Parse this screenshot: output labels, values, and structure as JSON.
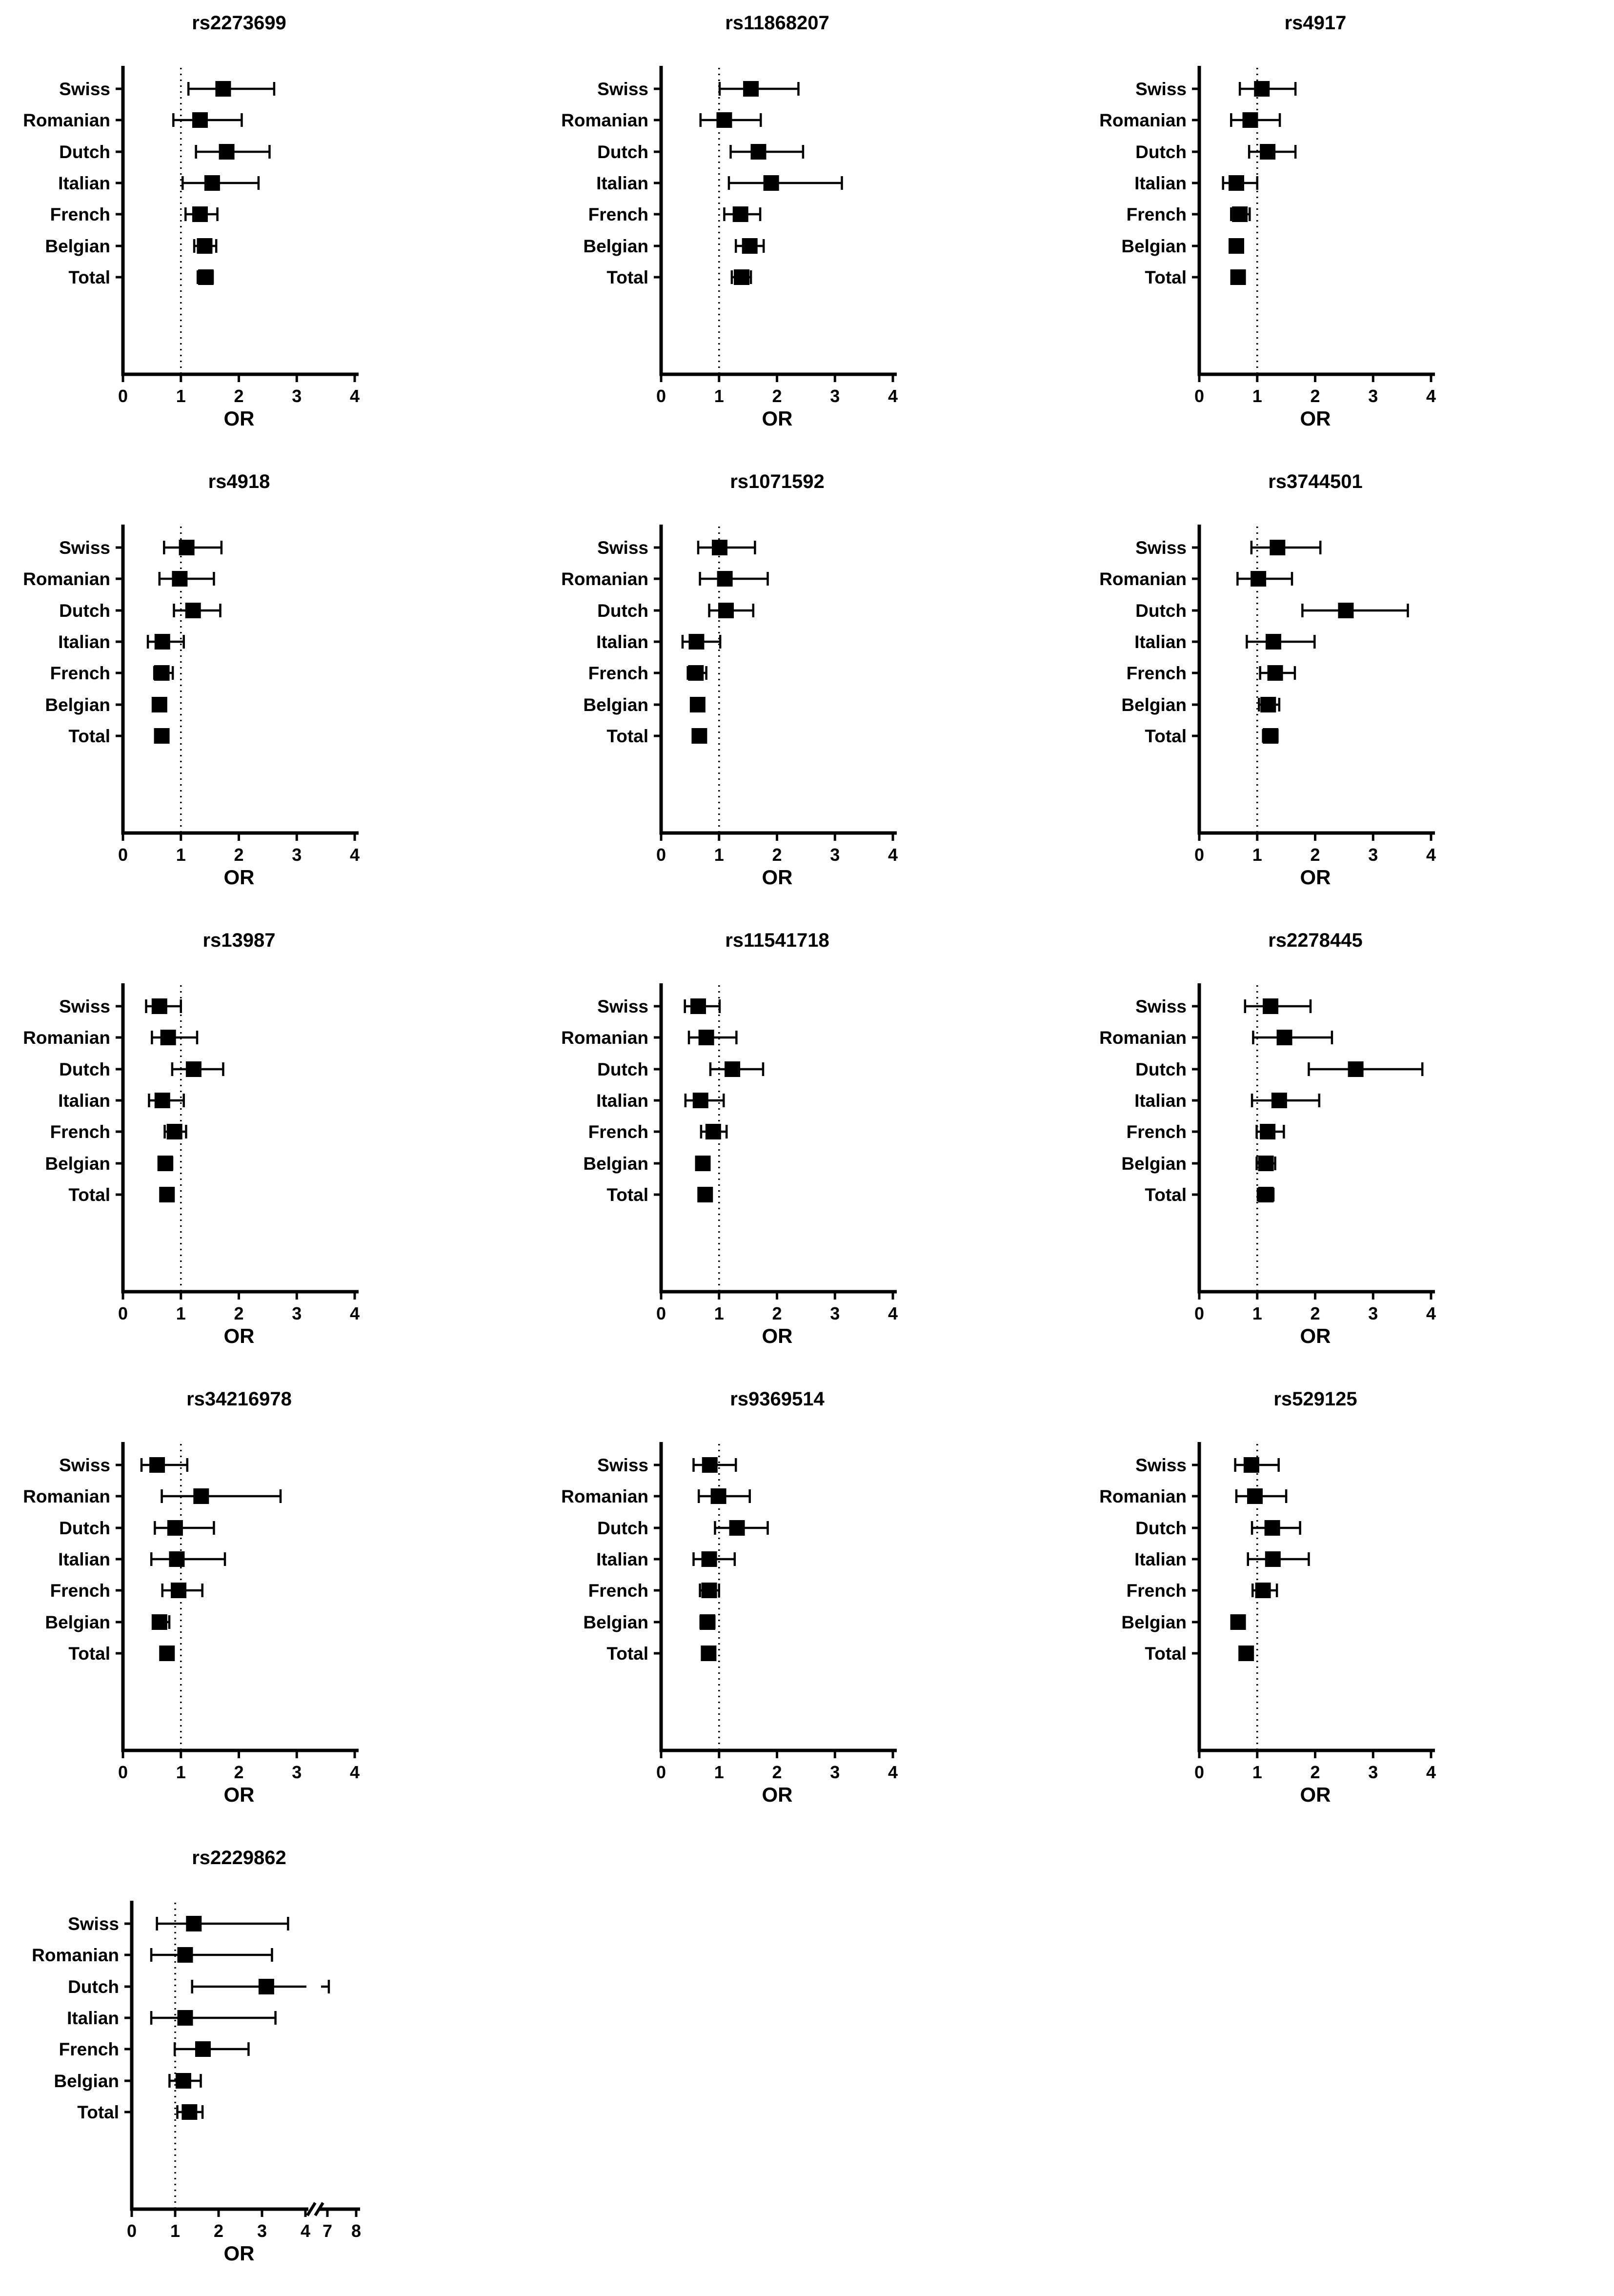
{
  "figure": {
    "background": "#ffffff",
    "ink_color": "#000000",
    "grid": "none",
    "legend": "none"
  },
  "chart_data": {
    "type": "scatter",
    "subtype": "forest-plot-grid",
    "layout_hint": "13 forest plots in a 3-column by 5-row grid (last row has 1 plot); horizontal error bars with square markers; dotted reference line at OR=1; no gridlines; no legend",
    "xlabel": "OR",
    "ref_line_x": 1,
    "categories": [
      "Swiss",
      "Romanian",
      "Dutch",
      "Italian",
      "French",
      "Belgian",
      "Total"
    ],
    "panels": [
      {
        "title": "rs2273699",
        "xticks": [
          0,
          1,
          2,
          3,
          4
        ],
        "points": [
          {
            "or": 1.73,
            "lo": 1.13,
            "hi": 2.61
          },
          {
            "or": 1.33,
            "lo": 0.87,
            "hi": 2.05
          },
          {
            "or": 1.79,
            "lo": 1.26,
            "hi": 2.53
          },
          {
            "or": 1.54,
            "lo": 1.03,
            "hi": 2.34
          },
          {
            "or": 1.33,
            "lo": 1.08,
            "hi": 1.63
          },
          {
            "or": 1.41,
            "lo": 1.23,
            "hi": 1.61
          },
          {
            "or": 1.43,
            "lo": 1.29,
            "hi": 1.55
          }
        ]
      },
      {
        "title": "rs11868207",
        "xticks": [
          0,
          1,
          2,
          3,
          4
        ],
        "points": [
          {
            "or": 1.55,
            "lo": 1.01,
            "hi": 2.37
          },
          {
            "or": 1.09,
            "lo": 0.68,
            "hi": 1.72
          },
          {
            "or": 1.68,
            "lo": 1.2,
            "hi": 2.45
          },
          {
            "or": 1.9,
            "lo": 1.17,
            "hi": 3.12
          },
          {
            "or": 1.37,
            "lo": 1.09,
            "hi": 1.71
          },
          {
            "or": 1.53,
            "lo": 1.29,
            "hi": 1.77
          },
          {
            "or": 1.39,
            "lo": 1.22,
            "hi": 1.55
          }
        ]
      },
      {
        "title": "rs4917",
        "xticks": [
          0,
          1,
          2,
          3,
          4
        ],
        "points": [
          {
            "or": 1.08,
            "lo": 0.7,
            "hi": 1.66
          },
          {
            "or": 0.88,
            "lo": 0.55,
            "hi": 1.39
          },
          {
            "or": 1.18,
            "lo": 0.86,
            "hi": 1.66
          },
          {
            "or": 0.64,
            "lo": 0.41,
            "hi": 1.0
          },
          {
            "or": 0.7,
            "lo": 0.55,
            "hi": 0.87
          },
          {
            "or": 0.64,
            "lo": 0.57,
            "hi": 0.72
          },
          {
            "or": 0.67,
            "lo": 0.61,
            "hi": 0.74
          }
        ]
      },
      {
        "title": "rs4918",
        "xticks": [
          0,
          1,
          2,
          3,
          4
        ],
        "points": [
          {
            "or": 1.1,
            "lo": 0.71,
            "hi": 1.7
          },
          {
            "or": 0.98,
            "lo": 0.63,
            "hi": 1.57
          },
          {
            "or": 1.21,
            "lo": 0.88,
            "hi": 1.68
          },
          {
            "or": 0.68,
            "lo": 0.43,
            "hi": 1.05
          },
          {
            "or": 0.67,
            "lo": 0.54,
            "hi": 0.86
          },
          {
            "or": 0.63,
            "lo": 0.56,
            "hi": 0.7
          },
          {
            "or": 0.67,
            "lo": 0.62,
            "hi": 0.73
          }
        ]
      },
      {
        "title": "rs1071592",
        "xticks": [
          0,
          1,
          2,
          3,
          4
        ],
        "points": [
          {
            "or": 1.01,
            "lo": 0.64,
            "hi": 1.62
          },
          {
            "or": 1.1,
            "lo": 0.67,
            "hi": 1.84
          },
          {
            "or": 1.12,
            "lo": 0.83,
            "hi": 1.59
          },
          {
            "or": 0.61,
            "lo": 0.37,
            "hi": 1.02
          },
          {
            "or": 0.6,
            "lo": 0.46,
            "hi": 0.78
          },
          {
            "or": 0.63,
            "lo": 0.55,
            "hi": 0.73
          },
          {
            "or": 0.66,
            "lo": 0.6,
            "hi": 0.72
          }
        ]
      },
      {
        "title": "rs3744501",
        "xticks": [
          0,
          1,
          2,
          3,
          4
        ],
        "points": [
          {
            "or": 1.35,
            "lo": 0.9,
            "hi": 2.09
          },
          {
            "or": 1.02,
            "lo": 0.66,
            "hi": 1.6
          },
          {
            "or": 2.53,
            "lo": 1.78,
            "hi": 3.6
          },
          {
            "or": 1.28,
            "lo": 0.82,
            "hi": 1.99
          },
          {
            "or": 1.31,
            "lo": 1.05,
            "hi": 1.65
          },
          {
            "or": 1.19,
            "lo": 1.03,
            "hi": 1.38
          },
          {
            "or": 1.23,
            "lo": 1.1,
            "hi": 1.35
          }
        ]
      },
      {
        "title": "rs13987",
        "xticks": [
          0,
          1,
          2,
          3,
          4
        ],
        "points": [
          {
            "or": 0.63,
            "lo": 0.4,
            "hi": 1.0
          },
          {
            "or": 0.78,
            "lo": 0.5,
            "hi": 1.28
          },
          {
            "or": 1.22,
            "lo": 0.85,
            "hi": 1.73
          },
          {
            "or": 0.68,
            "lo": 0.45,
            "hi": 1.05
          },
          {
            "or": 0.89,
            "lo": 0.72,
            "hi": 1.09
          },
          {
            "or": 0.73,
            "lo": 0.64,
            "hi": 0.85
          },
          {
            "or": 0.76,
            "lo": 0.7,
            "hi": 0.83
          }
        ]
      },
      {
        "title": "rs11541718",
        "xticks": [
          0,
          1,
          2,
          3,
          4
        ],
        "points": [
          {
            "or": 0.64,
            "lo": 0.41,
            "hi": 1.01
          },
          {
            "or": 0.78,
            "lo": 0.48,
            "hi": 1.3
          },
          {
            "or": 1.23,
            "lo": 0.85,
            "hi": 1.76
          },
          {
            "or": 0.68,
            "lo": 0.42,
            "hi": 1.08
          },
          {
            "or": 0.9,
            "lo": 0.69,
            "hi": 1.13
          },
          {
            "or": 0.72,
            "lo": 0.62,
            "hi": 0.83
          },
          {
            "or": 0.76,
            "lo": 0.69,
            "hi": 0.82
          }
        ]
      },
      {
        "title": "rs2278445",
        "xticks": [
          0,
          1,
          2,
          3,
          4
        ],
        "points": [
          {
            "or": 1.23,
            "lo": 0.79,
            "hi": 1.92
          },
          {
            "or": 1.47,
            "lo": 0.93,
            "hi": 2.29
          },
          {
            "or": 2.7,
            "lo": 1.89,
            "hi": 3.85
          },
          {
            "or": 1.38,
            "lo": 0.91,
            "hi": 2.07
          },
          {
            "or": 1.18,
            "lo": 0.99,
            "hi": 1.46
          },
          {
            "or": 1.15,
            "lo": 0.99,
            "hi": 1.31
          },
          {
            "or": 1.15,
            "lo": 1.01,
            "hi": 1.28
          }
        ]
      },
      {
        "title": "rs34216978",
        "xticks": [
          0,
          1,
          2,
          3,
          4
        ],
        "points": [
          {
            "or": 0.59,
            "lo": 0.32,
            "hi": 1.11
          },
          {
            "or": 1.35,
            "lo": 0.67,
            "hi": 2.72
          },
          {
            "or": 0.9,
            "lo": 0.55,
            "hi": 1.57
          },
          {
            "or": 0.93,
            "lo": 0.49,
            "hi": 1.76
          },
          {
            "or": 0.96,
            "lo": 0.68,
            "hi": 1.37
          },
          {
            "or": 0.63,
            "lo": 0.52,
            "hi": 0.8
          },
          {
            "or": 0.76,
            "lo": 0.66,
            "hi": 0.85
          }
        ]
      },
      {
        "title": "rs9369514",
        "xticks": [
          0,
          1,
          2,
          3,
          4
        ],
        "points": [
          {
            "or": 0.84,
            "lo": 0.56,
            "hi": 1.29
          },
          {
            "or": 0.99,
            "lo": 0.65,
            "hi": 1.53
          },
          {
            "or": 1.31,
            "lo": 0.93,
            "hi": 1.84
          },
          {
            "or": 0.83,
            "lo": 0.56,
            "hi": 1.27
          },
          {
            "or": 0.83,
            "lo": 0.67,
            "hi": 1.0
          },
          {
            "or": 0.8,
            "lo": 0.68,
            "hi": 0.92
          },
          {
            "or": 0.82,
            "lo": 0.74,
            "hi": 0.89
          }
        ]
      },
      {
        "title": "rs529125",
        "xticks": [
          0,
          1,
          2,
          3,
          4
        ],
        "points": [
          {
            "or": 0.9,
            "lo": 0.62,
            "hi": 1.37
          },
          {
            "or": 0.96,
            "lo": 0.64,
            "hi": 1.5
          },
          {
            "or": 1.26,
            "lo": 0.91,
            "hi": 1.74
          },
          {
            "or": 1.27,
            "lo": 0.84,
            "hi": 1.89
          },
          {
            "or": 1.1,
            "lo": 0.92,
            "hi": 1.34
          },
          {
            "or": 0.67,
            "lo": 0.57,
            "hi": 0.77
          },
          {
            "or": 0.81,
            "lo": 0.74,
            "hi": 0.88
          }
        ]
      },
      {
        "title": "rs2229862",
        "xticks": [
          0,
          1,
          2,
          3,
          4,
          7,
          8
        ],
        "axis_break_between": [
          4,
          7
        ],
        "ci_break_category": "Dutch",
        "points": [
          {
            "or": 1.43,
            "lo": 0.58,
            "hi": 3.6
          },
          {
            "or": 1.23,
            "lo": 0.45,
            "hi": 3.23
          },
          {
            "or": 3.1,
            "lo": 1.39,
            "hi": 7.05
          },
          {
            "or": 1.23,
            "lo": 0.45,
            "hi": 3.31
          },
          {
            "or": 1.64,
            "lo": 0.99,
            "hi": 2.69
          },
          {
            "or": 1.19,
            "lo": 0.87,
            "hi": 1.59
          },
          {
            "or": 1.33,
            "lo": 1.05,
            "hi": 1.63
          }
        ]
      }
    ]
  }
}
